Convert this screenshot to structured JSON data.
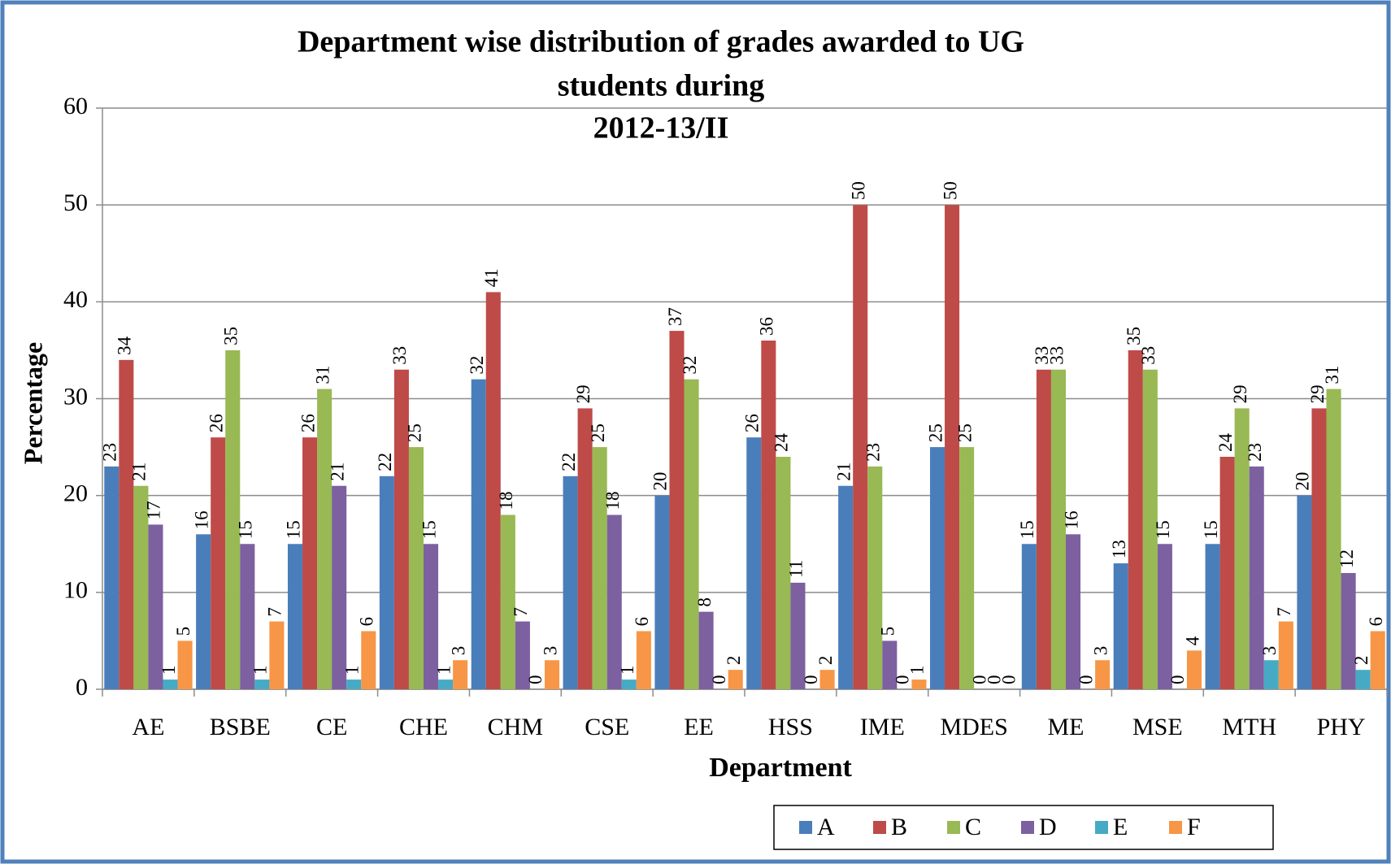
{
  "chart_data": {
    "type": "bar",
    "title": [
      "Department wise distribution of grades awarded to UG",
      "students during",
      "2012-13/II"
    ],
    "x_label": "Department",
    "y_label": "Percentage",
    "categories": [
      "AE",
      "BSBE",
      "CE",
      "CHE",
      "CHM",
      "CSE",
      "EE",
      "HSS",
      "IME",
      "MDES",
      "ME",
      "MSE",
      "MTH",
      "PHY"
    ],
    "series": [
      {
        "name": "A",
        "color": "#4a7ebb",
        "values": [
          23,
          16,
          15,
          22,
          32,
          22,
          20,
          26,
          21,
          25,
          15,
          13,
          15,
          20
        ]
      },
      {
        "name": "B",
        "color": "#be4b48",
        "values": [
          34,
          26,
          26,
          33,
          41,
          29,
          37,
          36,
          50,
          50,
          33,
          35,
          24,
          29
        ]
      },
      {
        "name": "C",
        "color": "#98b954",
        "values": [
          21,
          35,
          31,
          25,
          18,
          25,
          32,
          24,
          23,
          25,
          33,
          33,
          29,
          31
        ]
      },
      {
        "name": "D",
        "color": "#7d60a0",
        "values": [
          17,
          15,
          21,
          15,
          7,
          18,
          8,
          11,
          5,
          0,
          16,
          15,
          23,
          12
        ]
      },
      {
        "name": "E",
        "color": "#46aac5",
        "values": [
          1,
          1,
          1,
          1,
          0,
          1,
          0,
          0,
          0,
          0,
          0,
          0,
          3,
          2
        ]
      },
      {
        "name": "F",
        "color": "#f79646",
        "values": [
          5,
          7,
          6,
          3,
          3,
          6,
          2,
          2,
          1,
          0,
          3,
          4,
          7,
          6
        ]
      }
    ],
    "ylim": [
      0,
      60
    ],
    "yticks": [
      0,
      10,
      20,
      30,
      40,
      50,
      60
    ],
    "grid": true,
    "legend": "bottom"
  }
}
